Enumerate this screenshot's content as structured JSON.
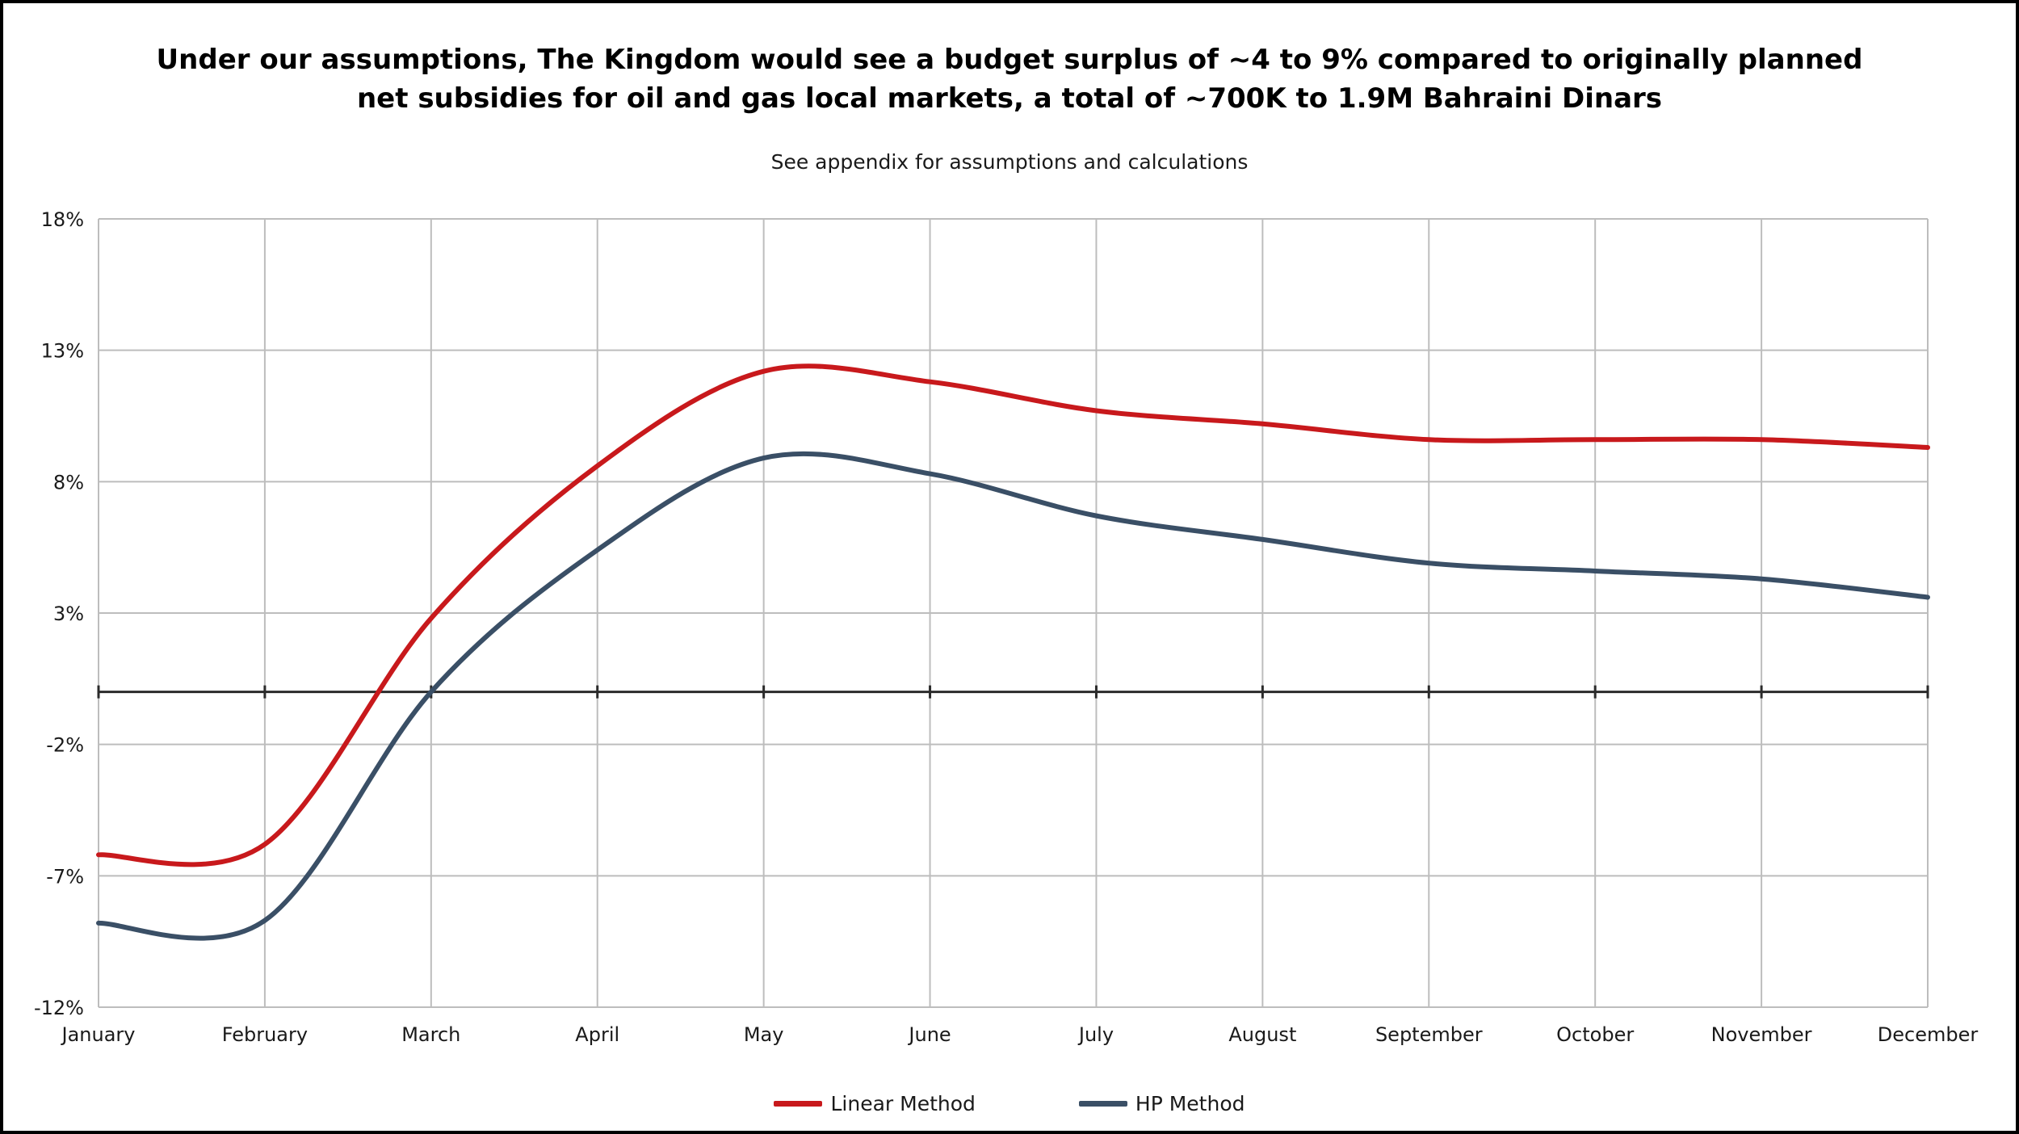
{
  "chart_data": {
    "type": "line",
    "title_lines": [
      "Under our assumptions, The Kingdom would see a budget surplus of ~4 to 9% compared to originally planned",
      "net subsidies for oil and gas local markets, a total of ~700K to 1.9M Bahraini Dinars"
    ],
    "subtitle": "See appendix for assumptions and calculations",
    "categories": [
      "January",
      "February",
      "March",
      "April",
      "May",
      "June",
      "July",
      "August",
      "September",
      "October",
      "November",
      "December"
    ],
    "y_ticks": [
      18,
      13,
      8,
      3,
      -2,
      -7,
      -12
    ],
    "y_tick_labels": [
      "18%",
      "13%",
      "8%",
      "3%",
      "-2%",
      "-7%",
      "-12%"
    ],
    "ylim": [
      -12,
      18
    ],
    "baseline": 0,
    "series": [
      {
        "name": "Linear Method",
        "color": "#c8191c",
        "values": [
          -6.2,
          -5.8,
          2.8,
          8.6,
          12.2,
          11.8,
          10.7,
          10.2,
          9.6,
          9.6,
          9.6,
          9.3
        ]
      },
      {
        "name": "HP Method",
        "color": "#3a4f66",
        "values": [
          -8.8,
          -8.7,
          0.0,
          5.4,
          8.9,
          8.3,
          6.7,
          5.8,
          4.9,
          4.6,
          4.3,
          3.6
        ]
      }
    ],
    "grid": true,
    "legend_position": "bottom-center"
  }
}
